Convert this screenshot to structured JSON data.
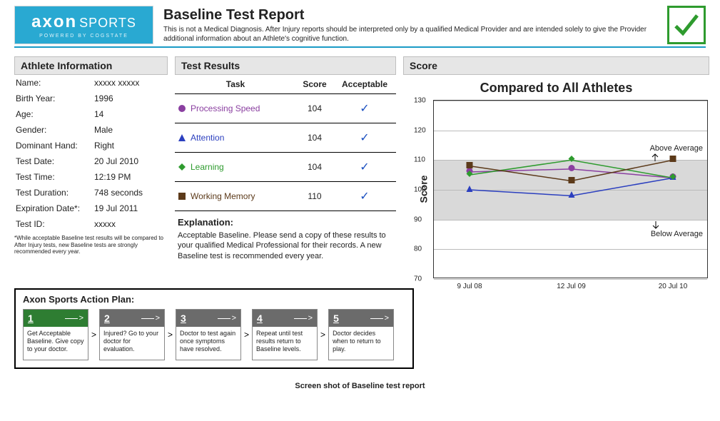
{
  "header": {
    "logo_brand": "axon",
    "logo_suffix": "SPORTS",
    "logo_sub": "POWERED BY COGSTATE",
    "title": "Baseline Test Report",
    "subtitle": "This is not a Medical Diagnosis. After Injury reports should be interpreted only by a qualified Medical Provider and are intended solely to give the Provider additional information about an Athlete's cognitive function.",
    "check_color": "#2e9b2e"
  },
  "athlete": {
    "panel_title": "Athlete Information",
    "rows": [
      {
        "label": "Name:",
        "value": "xxxxx xxxxx"
      },
      {
        "label": "Birth Year:",
        "value": "1996"
      },
      {
        "label": "Age:",
        "value": "14"
      },
      {
        "label": "Gender:",
        "value": "Male"
      },
      {
        "label": "Dominant Hand:",
        "value": "Right"
      },
      {
        "label": "Test Date:",
        "value": "20 Jul 2010"
      },
      {
        "label": "Test Time:",
        "value": "12:19 PM"
      },
      {
        "label": "Test Duration:",
        "value": "748 seconds"
      },
      {
        "label": "Expiration Date*:",
        "value": "19 Jul 2011"
      },
      {
        "label": "Test ID:",
        "value": "xxxxx"
      }
    ],
    "footnote": "*While acceptable Baseline test results will be compared to After Injury tests, new Baseline tests are strongly recommended every year."
  },
  "tests": {
    "panel_title": "Test Results",
    "columns": [
      "Task",
      "Score",
      "Acceptable"
    ],
    "rows": [
      {
        "name": "Processing Speed",
        "score": "104",
        "acceptable": true,
        "color": "#8a3fa0",
        "marker": "circle"
      },
      {
        "name": "Attention",
        "score": "104",
        "acceptable": true,
        "color": "#2b3fbf",
        "marker": "triangle"
      },
      {
        "name": "Learning",
        "score": "104",
        "acceptable": true,
        "color": "#2e9b2e",
        "marker": "diamond"
      },
      {
        "name": "Working Memory",
        "score": "110",
        "acceptable": true,
        "color": "#5c3a1a",
        "marker": "square"
      }
    ],
    "explanation_title": "Explanation:",
    "explanation_text": "Acceptable Baseline. Please send a copy of these results to your qualified Medical Professional for their records. A new Baseline test is recommended every year."
  },
  "chart": {
    "panel_title": "Score",
    "title": "Compared to All Athletes",
    "title_fontsize": 18,
    "ylabel": "Score",
    "ylim": [
      70,
      130
    ],
    "ytick_step": 10,
    "yticks": [
      70,
      80,
      90,
      100,
      110,
      120,
      130
    ],
    "x_categories": [
      "9 Jul 08",
      "12 Jul 09",
      "20 Jul 10"
    ],
    "band": {
      "from": 90,
      "to": 110,
      "color": "#d9d9d9"
    },
    "above_label": "Above Average",
    "below_label": "Below Average",
    "grid_color": "#bbbbbb",
    "border_color": "#333333",
    "background_color": "#ffffff",
    "marker_size": 11,
    "line_width": 1.5,
    "series": [
      {
        "name": "Processing Speed",
        "color": "#8a3fa0",
        "marker": "circle",
        "values": [
          106,
          107,
          104
        ]
      },
      {
        "name": "Attention",
        "color": "#2b3fbf",
        "marker": "triangle",
        "values": [
          100,
          98,
          104
        ]
      },
      {
        "name": "Learning",
        "color": "#2e9b2e",
        "marker": "diamond",
        "values": [
          105,
          110,
          104
        ]
      },
      {
        "name": "Working Memory",
        "color": "#5c3a1a",
        "marker": "square",
        "values": [
          108,
          103,
          110
        ]
      }
    ]
  },
  "action_plan": {
    "title": "Axon Sports Action Plan:",
    "active_index": 0,
    "active_bg": "#2e7d32",
    "inactive_bg": "#6b6b6b",
    "steps": [
      {
        "num": "1",
        "text": "Get Acceptable Baseline. Give copy to your doctor."
      },
      {
        "num": "2",
        "text": "Injured? Go to your doctor for evaluation."
      },
      {
        "num": "3",
        "text": "Doctor to test again once symptoms have resolved."
      },
      {
        "num": "4",
        "text": "Repeat until test results return to Baseline levels."
      },
      {
        "num": "5",
        "text": "Doctor decides when to return to play."
      }
    ]
  },
  "caption": "Screen shot of Baseline test report"
}
